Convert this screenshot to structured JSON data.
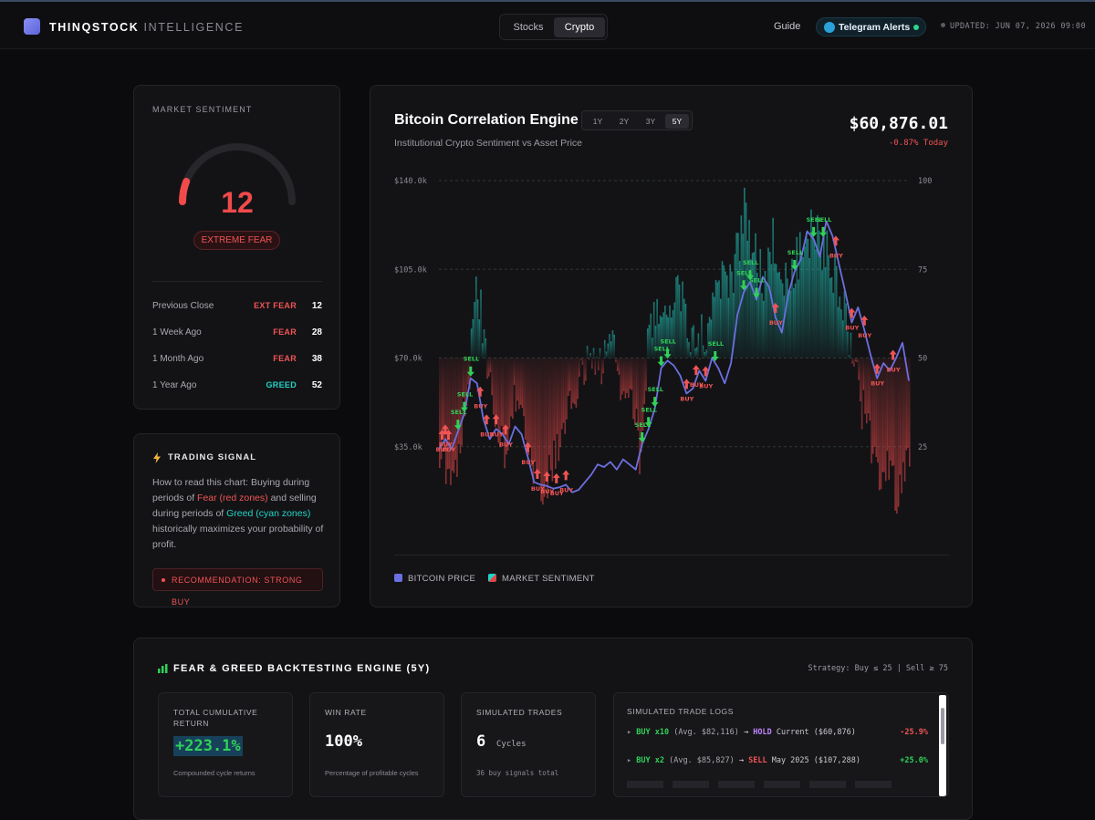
{
  "brand": {
    "name": "THINQSTOCK",
    "suffix": "INTELLIGENCE"
  },
  "market_tabs": [
    {
      "label": "Stocks",
      "active": false
    },
    {
      "label": "Crypto",
      "active": true
    }
  ],
  "nav": {
    "guide": "Guide",
    "telegram": "Telegram Alerts",
    "updated": "UPDATED: JUN 07, 2026 09:00"
  },
  "sentiment": {
    "heading": "MARKET SENTIMENT",
    "value": "12",
    "gauge_fraction": 0.12,
    "label": "EXTREME FEAR",
    "history": [
      {
        "period": "Previous Close",
        "tag": "EXT FEAR",
        "value": "12",
        "color": "#f05454"
      },
      {
        "period": "1 Week Ago",
        "tag": "FEAR",
        "value": "28",
        "color": "#f05454"
      },
      {
        "period": "1 Month Ago",
        "tag": "FEAR",
        "value": "38",
        "color": "#f05454"
      },
      {
        "period": "1 Year Ago",
        "tag": "GREED",
        "value": "52",
        "color": "#22d3c5"
      }
    ]
  },
  "signal": {
    "heading": "TRADING SIGNAL",
    "text_1": "How to read this chart: Buying during periods of ",
    "fear": "Fear (red zones)",
    "text_2": " and selling during periods of ",
    "greed": "Greed (cyan zones)",
    "text_3": " historically maximizes your probability of profit.",
    "recommendation": "RECOMMENDATION: STRONG BUY"
  },
  "engine": {
    "title": "Bitcoin Correlation Engine",
    "subtitle": "Institutional Crypto Sentiment vs Asset Price",
    "ranges": [
      {
        "label": "1Y",
        "active": false
      },
      {
        "label": "2Y",
        "active": false
      },
      {
        "label": "3Y",
        "active": false
      },
      {
        "label": "5Y",
        "active": true
      }
    ],
    "price": "$60,876.01",
    "change": "-0.87% Today",
    "legend_price": "BITCOIN PRICE",
    "legend_sentiment": "MARKET SENTIMENT"
  },
  "chart_data": {
    "type": "line",
    "title": "Bitcoin Correlation Engine",
    "left_axis": {
      "ticks": [
        "$140.0k",
        "$105.0k",
        "$70.0k",
        "$35.0k"
      ],
      "tick_values": [
        140000,
        105000,
        70000,
        35000
      ],
      "ylim": [
        0,
        140000
      ]
    },
    "right_axis": {
      "ticks": [
        "100",
        "75",
        "50",
        "25"
      ],
      "tick_values": [
        100,
        75,
        50,
        25
      ],
      "ylim": [
        0,
        100
      ]
    },
    "x_range": [
      "2021-06",
      "2026-06"
    ],
    "series": [
      {
        "name": "BITCOIN PRICE",
        "color": "#6b70e0",
        "points": [
          [
            0,
            34000
          ],
          [
            2,
            38000
          ],
          [
            4,
            34000
          ],
          [
            6,
            41000
          ],
          [
            8,
            48000
          ],
          [
            10,
            62000
          ],
          [
            12,
            60000
          ],
          [
            14,
            46000
          ],
          [
            16,
            38000
          ],
          [
            18,
            42000
          ],
          [
            20,
            40000
          ],
          [
            22,
            36000
          ],
          [
            24,
            43000
          ],
          [
            26,
            40000
          ],
          [
            28,
            31000
          ],
          [
            30,
            21000
          ],
          [
            32,
            20000
          ],
          [
            34,
            19500
          ],
          [
            36,
            18500
          ],
          [
            38,
            19000
          ],
          [
            40,
            20000
          ],
          [
            42,
            17000
          ],
          [
            44,
            18000
          ],
          [
            46,
            21000
          ],
          [
            48,
            24000
          ],
          [
            50,
            28000
          ],
          [
            52,
            27000
          ],
          [
            54,
            29000
          ],
          [
            56,
            26000
          ],
          [
            58,
            30000
          ],
          [
            60,
            28000
          ],
          [
            62,
            26000
          ],
          [
            64,
            36000
          ],
          [
            66,
            42000
          ],
          [
            68,
            50000
          ],
          [
            70,
            66000
          ],
          [
            72,
            69000
          ],
          [
            74,
            67000
          ],
          [
            76,
            63000
          ],
          [
            78,
            56000
          ],
          [
            80,
            58000
          ],
          [
            82,
            65000
          ],
          [
            84,
            61000
          ],
          [
            86,
            70000
          ],
          [
            88,
            66000
          ],
          [
            90,
            60000
          ],
          [
            92,
            68000
          ],
          [
            94,
            87000
          ],
          [
            96,
            96000
          ],
          [
            98,
            100000
          ],
          [
            100,
            93000
          ],
          [
            102,
            102000
          ],
          [
            104,
            98000
          ],
          [
            106,
            86000
          ],
          [
            108,
            80000
          ],
          [
            110,
            95000
          ],
          [
            112,
            104000
          ],
          [
            114,
            109000
          ],
          [
            116,
            120000
          ],
          [
            118,
            117000
          ],
          [
            120,
            110000
          ],
          [
            122,
            124000
          ],
          [
            124,
            118000
          ],
          [
            126,
            107000
          ],
          [
            128,
            96000
          ],
          [
            130,
            84000
          ],
          [
            132,
            90000
          ],
          [
            134,
            81000
          ],
          [
            136,
            71000
          ],
          [
            138,
            62000
          ],
          [
            140,
            68000
          ],
          [
            142,
            65000
          ],
          [
            144,
            70000
          ],
          [
            146,
            76000
          ],
          [
            148,
            61000
          ]
        ]
      },
      {
        "name": "MARKET SENTIMENT",
        "color_greed": "#22d3c5",
        "color_fear": "#e04646",
        "points": [
          [
            0,
            26
          ],
          [
            3,
            18
          ],
          [
            6,
            24
          ],
          [
            9,
            42
          ],
          [
            12,
            71
          ],
          [
            15,
            45
          ],
          [
            18,
            30
          ],
          [
            21,
            22
          ],
          [
            24,
            40
          ],
          [
            27,
            34
          ],
          [
            30,
            14
          ],
          [
            33,
            12
          ],
          [
            36,
            20
          ],
          [
            39,
            28
          ],
          [
            42,
            38
          ],
          [
            45,
            44
          ],
          [
            48,
            52
          ],
          [
            51,
            48
          ],
          [
            54,
            56
          ],
          [
            57,
            42
          ],
          [
            60,
            46
          ],
          [
            63,
            24
          ],
          [
            66,
            58
          ],
          [
            69,
            62
          ],
          [
            72,
            66
          ],
          [
            75,
            72
          ],
          [
            78,
            60
          ],
          [
            81,
            54
          ],
          [
            84,
            58
          ],
          [
            87,
            74
          ],
          [
            90,
            70
          ],
          [
            93,
            76
          ],
          [
            96,
            92
          ],
          [
            99,
            80
          ],
          [
            102,
            72
          ],
          [
            105,
            84
          ],
          [
            108,
            68
          ],
          [
            111,
            76
          ],
          [
            114,
            80
          ],
          [
            117,
            86
          ],
          [
            120,
            82
          ],
          [
            123,
            78
          ],
          [
            126,
            70
          ],
          [
            129,
            54
          ],
          [
            132,
            40
          ],
          [
            135,
            30
          ],
          [
            138,
            16
          ],
          [
            141,
            20
          ],
          [
            144,
            12
          ],
          [
            147,
            18
          ]
        ]
      }
    ],
    "annotations": [
      {
        "label": "BUY",
        "x": 1,
        "color": "#f05454"
      },
      {
        "label": "BUY",
        "x": 2,
        "color": "#f05454"
      },
      {
        "label": "BUY",
        "x": 3,
        "color": "#f05454"
      },
      {
        "label": "SELL",
        "x": 6,
        "color": "#30d158"
      },
      {
        "label": "SELL",
        "x": 8,
        "color": "#30d158"
      },
      {
        "label": "SELL",
        "x": 10,
        "color": "#30d158"
      },
      {
        "label": "BUY",
        "x": 13,
        "color": "#f05454"
      },
      {
        "label": "BUY",
        "x": 15,
        "color": "#f05454"
      },
      {
        "label": "BUY",
        "x": 18,
        "color": "#f05454"
      },
      {
        "label": "BUY",
        "x": 21,
        "color": "#f05454"
      },
      {
        "label": "BUY",
        "x": 28,
        "color": "#f05454"
      },
      {
        "label": "BUY",
        "x": 31,
        "color": "#f05454"
      },
      {
        "label": "BUY",
        "x": 34,
        "color": "#f05454"
      },
      {
        "label": "BUY",
        "x": 37,
        "color": "#f05454"
      },
      {
        "label": "BUY",
        "x": 40,
        "color": "#f05454"
      },
      {
        "label": "SELL",
        "x": 64,
        "color": "#30d158"
      },
      {
        "label": "SELL",
        "x": 66,
        "color": "#30d158"
      },
      {
        "label": "SELL",
        "x": 68,
        "color": "#30d158"
      },
      {
        "label": "SELL",
        "x": 70,
        "color": "#30d158"
      },
      {
        "label": "SELL",
        "x": 72,
        "color": "#30d158"
      },
      {
        "label": "BUY",
        "x": 78,
        "color": "#f05454"
      },
      {
        "label": "BUY",
        "x": 81,
        "color": "#f05454"
      },
      {
        "label": "BUY",
        "x": 84,
        "color": "#f05454"
      },
      {
        "label": "SELL",
        "x": 87,
        "color": "#30d158"
      },
      {
        "label": "SELL",
        "x": 96,
        "color": "#30d158"
      },
      {
        "label": "SELL",
        "x": 98,
        "color": "#30d158"
      },
      {
        "label": "SELL",
        "x": 100,
        "color": "#30d158"
      },
      {
        "label": "BUY",
        "x": 106,
        "color": "#f05454"
      },
      {
        "label": "SELL",
        "x": 112,
        "color": "#30d158"
      },
      {
        "label": "SELL",
        "x": 118,
        "color": "#30d158"
      },
      {
        "label": "SELL",
        "x": 121,
        "color": "#30d158"
      },
      {
        "label": "BUY",
        "x": 125,
        "color": "#f05454"
      },
      {
        "label": "BUY",
        "x": 130,
        "color": "#f05454"
      },
      {
        "label": "BUY",
        "x": 134,
        "color": "#f05454"
      },
      {
        "label": "BUY",
        "x": 138,
        "color": "#f05454"
      },
      {
        "label": "BUY",
        "x": 143,
        "color": "#f05454"
      }
    ],
    "grid": true,
    "legend": "bottom-left"
  },
  "backtest": {
    "title": "FEAR & GREED BACKTESTING ENGINE (5Y)",
    "strategy": "Strategy: Buy ≤ 25 | Sell ≥ 75",
    "stats": [
      {
        "label": "TOTAL CUMULATIVE RETURN",
        "value": "+223.1%",
        "note": "Compounded cycle returns"
      },
      {
        "label": "WIN RATE",
        "value": "100%",
        "note": "Percentage of profitable cycles"
      },
      {
        "label": "SIMULATED TRADES",
        "value": "6",
        "unit": "Cycles",
        "note": "36 buy signals total"
      }
    ],
    "logs_title": "SIMULATED TRADE LOGS",
    "logs": [
      {
        "buy": "BUY x10",
        "avg": "(Avg. $82,116)",
        "action": "HOLD",
        "when": "Current ($60,876)",
        "result": "-25.9%",
        "action_color": "#c084fc",
        "result_color": "#f05454"
      },
      {
        "buy": "BUY x2",
        "avg": "(Avg. $85,827)",
        "action": "SELL",
        "when": "May 2025 ($107,288)",
        "result": "+25.0%",
        "action_color": "#f05454",
        "result_color": "#30d158"
      }
    ]
  }
}
